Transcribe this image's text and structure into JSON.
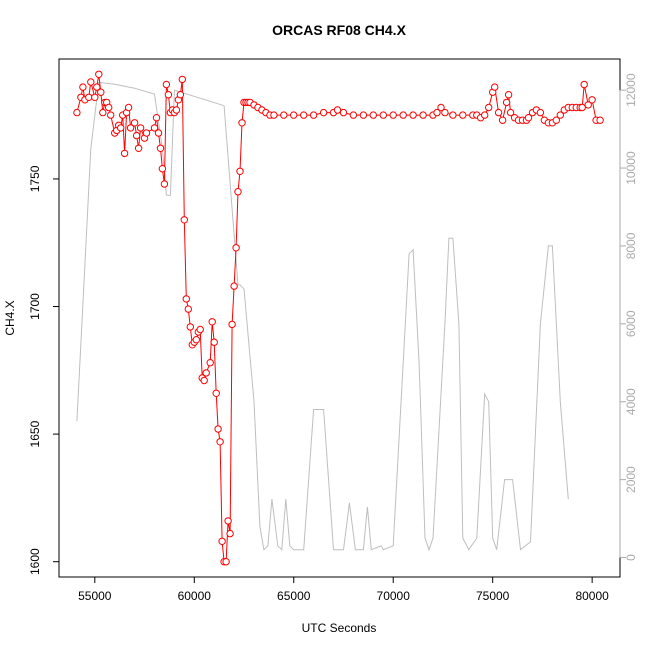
{
  "chart_data": {
    "type": "line",
    "title": "ORCAS RF08 CH4.X",
    "xlabel": "UTC Seconds",
    "ylabel": "CH4.X",
    "xlim": [
      53200,
      81400
    ],
    "ylim": [
      1594,
      1797
    ],
    "y2lim": [
      -500,
      12800
    ],
    "x_ticks": [
      55000,
      60000,
      65000,
      70000,
      75000,
      80000
    ],
    "y_ticks": [
      1600,
      1650,
      1700,
      1750
    ],
    "y2_ticks": [
      0,
      2000,
      4000,
      6000,
      8000,
      10000,
      12000
    ],
    "grid": false,
    "colors": {
      "ch4": "#ff0000",
      "altitude": "#bebebe",
      "axis": "#000000",
      "right_axis": "#aaaaaa"
    },
    "series": [
      {
        "values": [
          [
            54100,
            1776
          ],
          [
            54300,
            1782
          ],
          [
            54400,
            1786
          ],
          [
            54500,
            1781
          ],
          [
            54700,
            1782
          ],
          [
            54800,
            1788
          ],
          [
            55000,
            1782
          ],
          [
            55100,
            1786
          ],
          [
            55200,
            1791
          ],
          [
            55300,
            1784
          ],
          [
            55400,
            1776
          ],
          [
            55500,
            1780
          ],
          [
            55600,
            1780
          ],
          [
            55700,
            1778
          ],
          [
            55800,
            1775
          ],
          [
            56000,
            1768
          ],
          [
            56100,
            1769
          ],
          [
            56200,
            1771
          ],
          [
            56300,
            1770
          ],
          [
            56400,
            1775
          ],
          [
            56500,
            1760
          ],
          [
            56600,
            1776
          ],
          [
            56700,
            1778
          ],
          [
            56800,
            1770
          ],
          [
            57000,
            1772
          ],
          [
            57100,
            1767
          ],
          [
            57200,
            1762
          ],
          [
            57300,
            1770
          ],
          [
            57500,
            1766
          ],
          [
            57600,
            1768
          ],
          [
            58000,
            1770
          ],
          [
            58100,
            1774
          ],
          [
            58200,
            1768
          ],
          [
            58300,
            1762
          ],
          [
            58400,
            1754
          ],
          [
            58500,
            1748
          ],
          [
            58600,
            1787
          ],
          [
            58700,
            1783
          ],
          [
            58800,
            1776
          ],
          [
            58900,
            1777
          ],
          [
            59000,
            1776
          ],
          [
            59100,
            1777
          ],
          [
            59200,
            1781
          ],
          [
            59300,
            1783
          ],
          [
            59400,
            1789
          ],
          [
            59500,
            1734
          ],
          [
            59600,
            1703
          ],
          [
            59700,
            1699
          ],
          [
            59800,
            1692
          ],
          [
            59900,
            1685
          ],
          [
            60000,
            1686
          ],
          [
            60100,
            1687
          ],
          [
            60200,
            1690
          ],
          [
            60300,
            1691
          ],
          [
            60400,
            1672
          ],
          [
            60500,
            1671
          ],
          [
            60600,
            1674
          ],
          [
            60800,
            1678
          ],
          [
            60900,
            1694
          ],
          [
            61000,
            1686
          ],
          [
            61100,
            1666
          ],
          [
            61200,
            1652
          ],
          [
            61300,
            1647
          ],
          [
            61400,
            1608
          ],
          [
            61500,
            1600
          ],
          [
            61600,
            1600
          ],
          [
            61700,
            1616
          ],
          [
            61800,
            1611
          ],
          [
            61900,
            1693
          ],
          [
            62000,
            1708
          ],
          [
            62100,
            1723
          ],
          [
            62200,
            1745
          ],
          [
            62300,
            1753
          ],
          [
            62400,
            1772
          ],
          [
            62500,
            1780
          ],
          [
            62600,
            1780
          ],
          [
            62700,
            1780
          ],
          [
            62800,
            1780
          ],
          [
            63000,
            1779
          ],
          [
            63200,
            1778
          ],
          [
            63400,
            1777
          ],
          [
            63600,
            1776
          ],
          [
            63800,
            1775
          ],
          [
            64000,
            1775
          ],
          [
            64500,
            1775
          ],
          [
            65000,
            1775
          ],
          [
            65500,
            1775
          ],
          [
            66000,
            1775
          ],
          [
            66500,
            1776
          ],
          [
            67000,
            1776
          ],
          [
            67200,
            1777
          ],
          [
            67500,
            1776
          ],
          [
            68000,
            1775
          ],
          [
            68500,
            1775
          ],
          [
            69000,
            1775
          ],
          [
            69500,
            1775
          ],
          [
            70000,
            1775
          ],
          [
            70500,
            1775
          ],
          [
            71000,
            1775
          ],
          [
            71500,
            1775
          ],
          [
            72000,
            1775
          ],
          [
            72200,
            1776
          ],
          [
            72400,
            1778
          ],
          [
            72600,
            1776
          ],
          [
            73000,
            1775
          ],
          [
            73500,
            1775
          ],
          [
            74000,
            1775
          ],
          [
            74200,
            1775
          ],
          [
            74400,
            1774
          ],
          [
            74600,
            1775
          ],
          [
            74800,
            1778
          ],
          [
            75000,
            1784
          ],
          [
            75100,
            1786
          ],
          [
            75300,
            1776
          ],
          [
            75500,
            1773
          ],
          [
            75700,
            1780
          ],
          [
            75800,
            1783
          ],
          [
            75900,
            1776
          ],
          [
            76100,
            1774
          ],
          [
            76300,
            1773
          ],
          [
            76500,
            1773
          ],
          [
            76700,
            1773
          ],
          [
            76800,
            1774
          ],
          [
            77000,
            1776
          ],
          [
            77200,
            1777
          ],
          [
            77400,
            1776
          ],
          [
            77600,
            1773
          ],
          [
            77800,
            1772
          ],
          [
            78000,
            1772
          ],
          [
            78200,
            1773
          ],
          [
            78400,
            1775
          ],
          [
            78600,
            1777
          ],
          [
            78800,
            1778
          ],
          [
            79000,
            1778
          ],
          [
            79200,
            1778
          ],
          [
            79400,
            1778
          ],
          [
            79500,
            1778
          ],
          [
            79600,
            1787
          ],
          [
            79800,
            1779
          ],
          [
            80000,
            1781
          ],
          [
            80200,
            1773
          ],
          [
            80400,
            1773
          ]
        ]
      },
      {
        "values": [
          [
            54100,
            3500
          ],
          [
            54400,
            6500
          ],
          [
            54800,
            10500
          ],
          [
            55200,
            12200
          ],
          [
            56000,
            12150
          ],
          [
            57000,
            12050
          ],
          [
            58000,
            11900
          ],
          [
            58400,
            10500
          ],
          [
            58600,
            9300
          ],
          [
            58800,
            9300
          ],
          [
            59000,
            12000
          ],
          [
            61500,
            11600
          ],
          [
            62200,
            7000
          ],
          [
            62300,
            7000
          ],
          [
            62500,
            6900
          ],
          [
            63000,
            4000
          ],
          [
            63300,
            800
          ],
          [
            63500,
            200
          ],
          [
            63700,
            300
          ],
          [
            63900,
            1500
          ],
          [
            64200,
            300
          ],
          [
            64400,
            200
          ],
          [
            64600,
            1500
          ],
          [
            64800,
            300
          ],
          [
            65000,
            200
          ],
          [
            65500,
            200
          ],
          [
            66000,
            3800
          ],
          [
            66500,
            3800
          ],
          [
            67000,
            200
          ],
          [
            67500,
            200
          ],
          [
            67800,
            1400
          ],
          [
            68100,
            200
          ],
          [
            68500,
            200
          ],
          [
            68700,
            1300
          ],
          [
            68900,
            200
          ],
          [
            69400,
            300
          ],
          [
            69500,
            200
          ],
          [
            70000,
            300
          ],
          [
            70500,
            5000
          ],
          [
            70800,
            7800
          ],
          [
            71000,
            7900
          ],
          [
            71300,
            5000
          ],
          [
            71600,
            500
          ],
          [
            71800,
            200
          ],
          [
            72000,
            500
          ],
          [
            72600,
            6000
          ],
          [
            72800,
            8200
          ],
          [
            73000,
            8200
          ],
          [
            73300,
            6000
          ],
          [
            73500,
            500
          ],
          [
            73800,
            200
          ],
          [
            74200,
            500
          ],
          [
            74600,
            4200
          ],
          [
            74800,
            4000
          ],
          [
            75000,
            500
          ],
          [
            75200,
            200
          ],
          [
            75600,
            2000
          ],
          [
            76000,
            2000
          ],
          [
            76400,
            200
          ],
          [
            76900,
            400
          ],
          [
            77400,
            6000
          ],
          [
            77800,
            8000
          ],
          [
            78000,
            8000
          ],
          [
            78400,
            4000
          ],
          [
            78800,
            1500
          ]
        ]
      }
    ]
  }
}
